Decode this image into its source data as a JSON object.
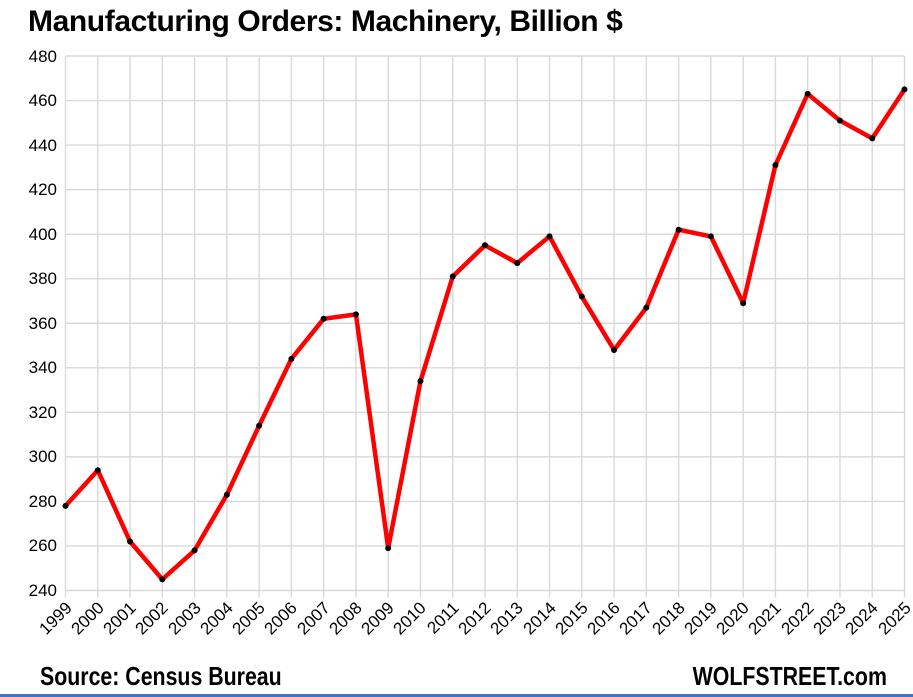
{
  "title": "Manufacturing Orders: Machinery, Billion $",
  "footer": {
    "source": "Source: Census Bureau",
    "brand": "WOLFSTREET.com"
  },
  "colors": {
    "background": "#ffffff",
    "line": "#ff0000",
    "marker": "#000000",
    "grid": "#d9d9d9",
    "text": "#000000",
    "bottom_rule": "#4472c4"
  },
  "chart_data": {
    "type": "line",
    "title": "Manufacturing Orders: Machinery, Billion $",
    "x": [
      "1999",
      "2000",
      "2001",
      "2002",
      "2003",
      "2004",
      "2005",
      "2006",
      "2007",
      "2008",
      "2009",
      "2010",
      "2011",
      "2012",
      "2013",
      "2014",
      "2015",
      "2016",
      "2017",
      "2018",
      "2019",
      "2020",
      "2021",
      "2022",
      "2023",
      "2024",
      "2025"
    ],
    "series": [
      {
        "name": "Manufacturing orders: machinery",
        "color": "#ff0000",
        "values": [
          278,
          294,
          262,
          245,
          258,
          283,
          314,
          344,
          362,
          364,
          259,
          334,
          381,
          395,
          387,
          399,
          372,
          348,
          367,
          402,
          399,
          369,
          431,
          463,
          451,
          443,
          465
        ]
      }
    ],
    "ylim": [
      240,
      480
    ],
    "ytick_step": 20,
    "yticks": [
      240,
      260,
      280,
      300,
      320,
      340,
      360,
      380,
      400,
      420,
      440,
      460,
      480
    ],
    "xlabel": "",
    "ylabel": "",
    "grid": true,
    "legend": false,
    "marker": "dot"
  }
}
